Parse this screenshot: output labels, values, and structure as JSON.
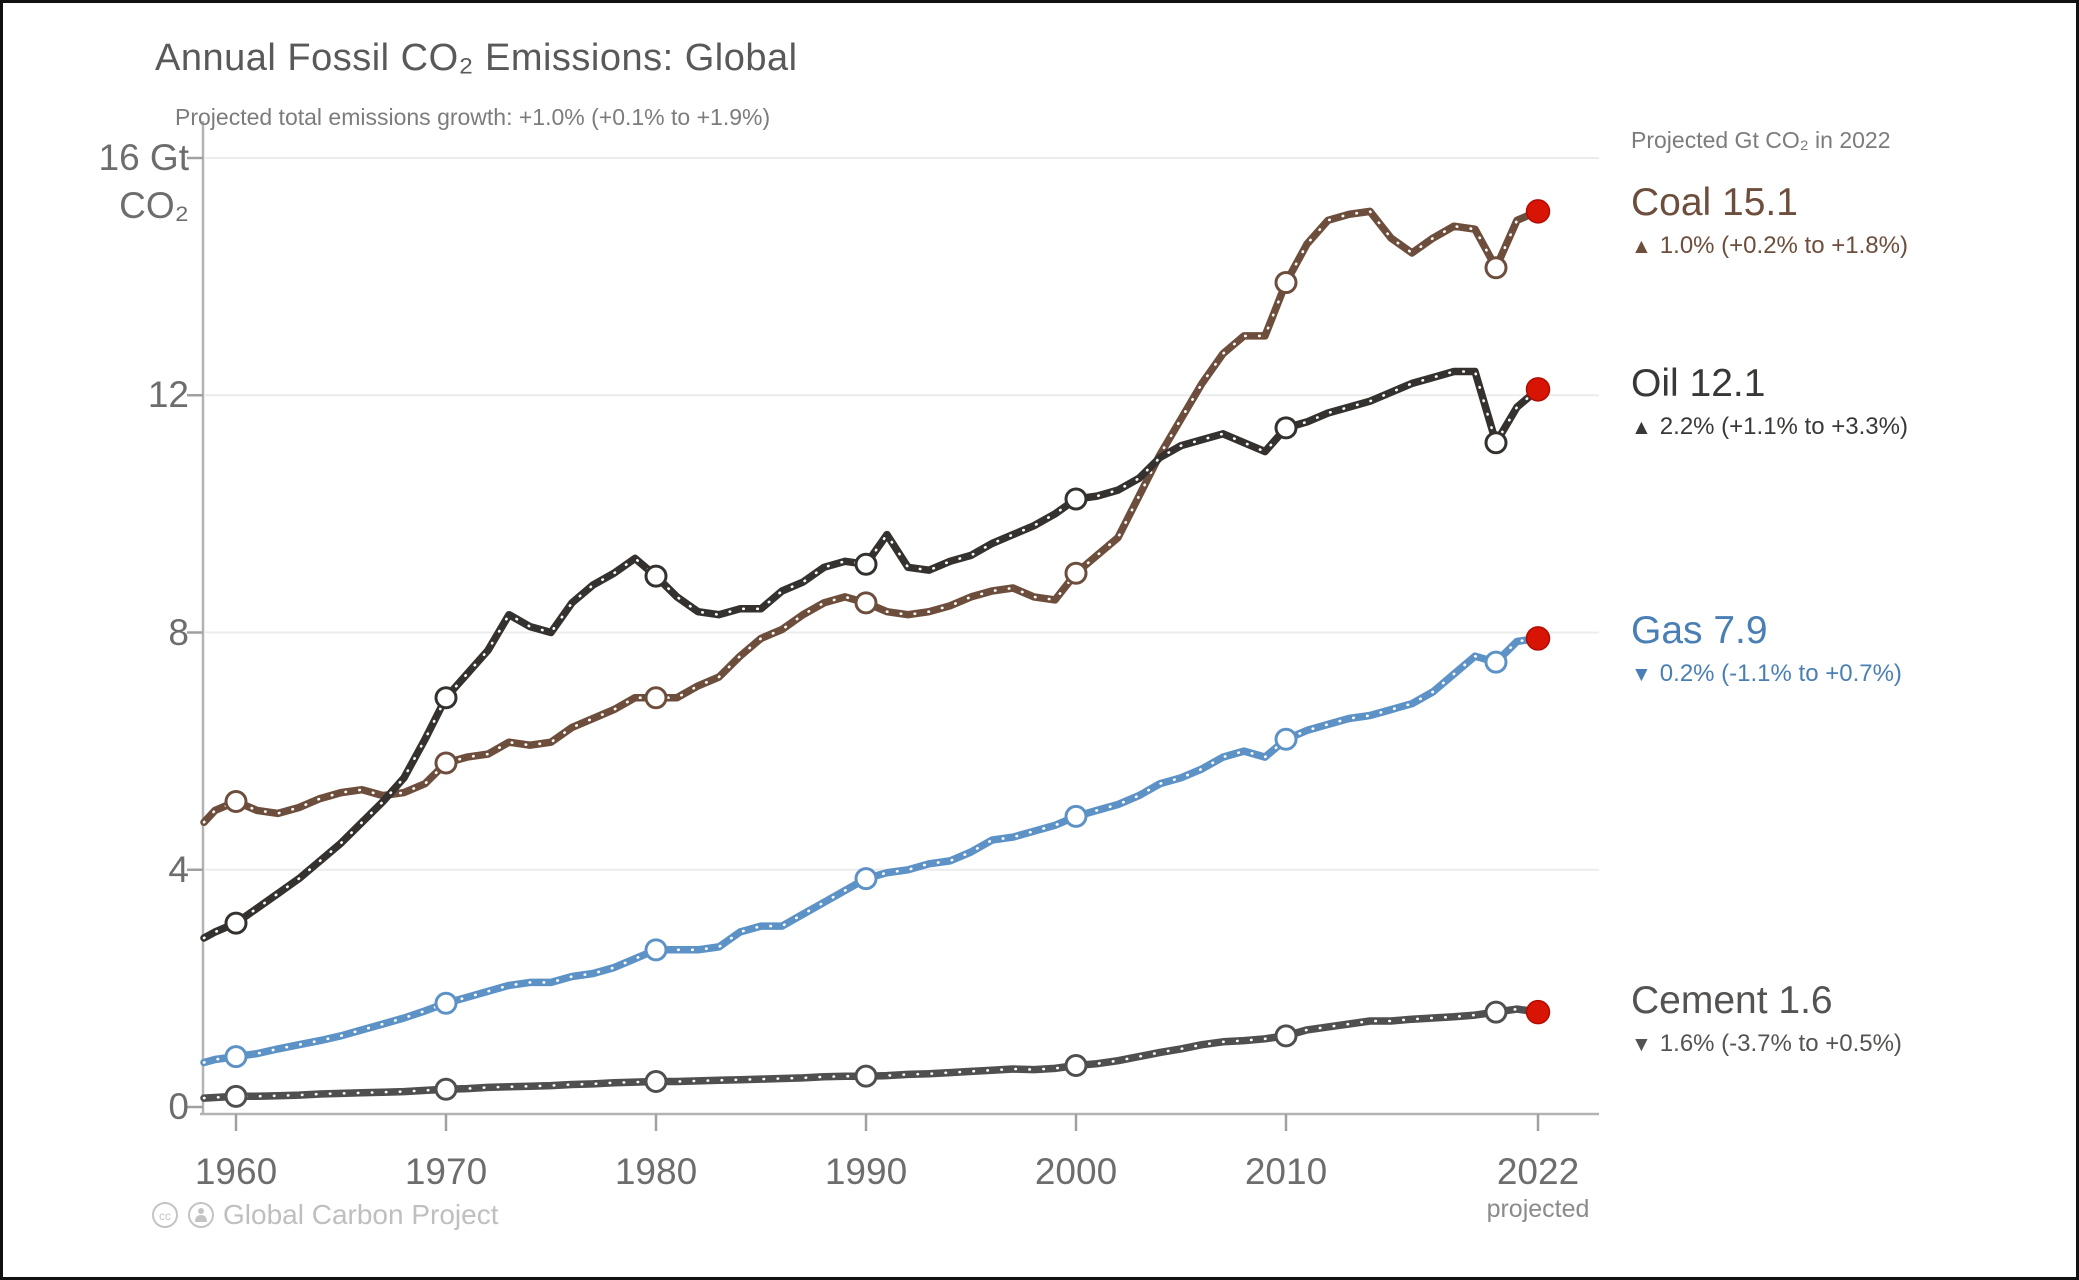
{
  "header": {
    "title": "Annual Fossil CO₂ Emissions: Global",
    "subtitle": "Projected total emissions growth: +1.0% (+0.1% to +1.9%)"
  },
  "y_axis": {
    "top_label_line1": "16 Gt",
    "top_label_line2": "CO₂",
    "ticks": [
      "12",
      "8",
      "4",
      "0"
    ]
  },
  "x_axis": {
    "ticks": [
      "1960",
      "1970",
      "1980",
      "1990",
      "2000",
      "2010",
      "2022"
    ],
    "annotation": "projected"
  },
  "legend": {
    "header": "Projected Gt CO₂ in 2022",
    "entries": [
      {
        "label": "Coal 15.1",
        "arrow": "▲",
        "growth": "1.0% (+0.2% to +1.8%)",
        "color": "#6d4e3c"
      },
      {
        "label": "Oil 12.1",
        "arrow": "▲",
        "growth": "2.2% (+1.1% to +3.3%)",
        "color": "#3a3836"
      },
      {
        "label": "Gas 7.9",
        "arrow": "▼",
        "growth": "0.2% (-1.1% to +0.7%)",
        "color": "#4a7fb5"
      },
      {
        "label": "Cement 1.6",
        "arrow": "▼",
        "growth": "1.6% (-3.7% to +0.5%)",
        "color": "#555351"
      }
    ]
  },
  "footer": {
    "credit": "Global Carbon Project"
  },
  "chart_data": {
    "type": "line",
    "title": "Annual Fossil CO₂ Emissions: Global",
    "subtitle": "Projected total emissions growth: +1.0% (+0.1% to +1.9%)",
    "ylabel": "Gt CO₂",
    "ylim": [
      0,
      16
    ],
    "yticks": [
      0,
      4,
      8,
      12,
      16
    ],
    "xticks": [
      1960,
      1970,
      1980,
      1990,
      2000,
      2010,
      2022
    ],
    "grid": "horizontal light gray at 4/8/12/16",
    "legend_position": "right of plot at line ends",
    "marker_years": [
      1960,
      1970,
      1980,
      1990,
      2000,
      2010,
      2020
    ],
    "projected_year": 2022,
    "projected_color": "#d81405",
    "years": [
      1958,
      1959,
      1960,
      1961,
      1962,
      1963,
      1964,
      1965,
      1966,
      1967,
      1968,
      1969,
      1970,
      1971,
      1972,
      1973,
      1974,
      1975,
      1976,
      1977,
      1978,
      1979,
      1980,
      1981,
      1982,
      1983,
      1984,
      1985,
      1986,
      1987,
      1988,
      1989,
      1990,
      1991,
      1992,
      1993,
      1994,
      1995,
      1996,
      1997,
      1998,
      1999,
      2000,
      2001,
      2002,
      2003,
      2004,
      2005,
      2006,
      2007,
      2008,
      2009,
      2010,
      2011,
      2012,
      2013,
      2014,
      2015,
      2016,
      2017,
      2018,
      2019,
      2020,
      2021,
      2022
    ],
    "series": [
      {
        "name": "Cement",
        "color": "#4f4f4f",
        "end_value": 1.6,
        "values": [
          0.15,
          0.16,
          0.18,
          0.18,
          0.19,
          0.2,
          0.22,
          0.23,
          0.24,
          0.25,
          0.26,
          0.28,
          0.3,
          0.31,
          0.33,
          0.34,
          0.35,
          0.36,
          0.38,
          0.39,
          0.41,
          0.42,
          0.43,
          0.43,
          0.44,
          0.45,
          0.46,
          0.47,
          0.48,
          0.49,
          0.51,
          0.52,
          0.52,
          0.53,
          0.55,
          0.56,
          0.58,
          0.6,
          0.62,
          0.64,
          0.63,
          0.65,
          0.7,
          0.73,
          0.78,
          0.85,
          0.92,
          0.98,
          1.05,
          1.1,
          1.12,
          1.15,
          1.2,
          1.3,
          1.35,
          1.4,
          1.45,
          1.45,
          1.48,
          1.5,
          1.52,
          1.55,
          1.6,
          1.65,
          1.6
        ]
      },
      {
        "name": "Gas",
        "color": "#5d92c6",
        "end_value": 7.9,
        "values": [
          0.75,
          0.8,
          0.85,
          0.9,
          0.98,
          1.05,
          1.12,
          1.2,
          1.3,
          1.4,
          1.5,
          1.62,
          1.75,
          1.85,
          1.95,
          2.05,
          2.1,
          2.1,
          2.2,
          2.25,
          2.35,
          2.5,
          2.65,
          2.65,
          2.65,
          2.7,
          2.95,
          3.05,
          3.05,
          3.25,
          3.45,
          3.65,
          3.85,
          3.95,
          4.0,
          4.1,
          4.15,
          4.3,
          4.5,
          4.55,
          4.65,
          4.75,
          4.9,
          5.0,
          5.1,
          5.25,
          5.45,
          5.55,
          5.7,
          5.9,
          6.0,
          5.9,
          6.2,
          6.35,
          6.45,
          6.55,
          6.6,
          6.7,
          6.8,
          7.0,
          7.3,
          7.6,
          7.5,
          7.85,
          7.9
        ]
      },
      {
        "name": "Coal",
        "color": "#6d4e3c",
        "end_value": 15.1,
        "values": [
          4.8,
          5.0,
          5.15,
          5.0,
          4.95,
          5.05,
          5.2,
          5.3,
          5.35,
          5.25,
          5.3,
          5.45,
          5.8,
          5.9,
          5.95,
          6.15,
          6.1,
          6.15,
          6.4,
          6.55,
          6.7,
          6.9,
          6.9,
          6.9,
          7.1,
          7.25,
          7.6,
          7.9,
          8.05,
          8.3,
          8.5,
          8.6,
          8.5,
          8.35,
          8.3,
          8.35,
          8.45,
          8.6,
          8.7,
          8.75,
          8.6,
          8.55,
          9.0,
          9.3,
          9.6,
          10.3,
          11.0,
          11.6,
          12.2,
          12.7,
          13.0,
          13.0,
          13.9,
          14.55,
          14.95,
          15.05,
          15.1,
          14.65,
          14.4,
          14.65,
          14.85,
          14.8,
          14.15,
          14.95,
          15.1
        ]
      },
      {
        "name": "Oil",
        "color": "#34312e",
        "end_value": 12.1,
        "values": [
          2.85,
          2.95,
          3.1,
          3.35,
          3.6,
          3.85,
          4.15,
          4.45,
          4.8,
          5.15,
          5.55,
          6.2,
          6.9,
          7.3,
          7.7,
          8.3,
          8.1,
          8.0,
          8.5,
          8.8,
          9.0,
          9.25,
          8.95,
          8.6,
          8.35,
          8.3,
          8.4,
          8.4,
          8.7,
          8.85,
          9.1,
          9.2,
          9.15,
          9.65,
          9.1,
          9.05,
          9.2,
          9.3,
          9.5,
          9.65,
          9.8,
          10.0,
          10.25,
          10.3,
          10.4,
          10.6,
          10.95,
          11.15,
          11.25,
          11.35,
          11.2,
          11.05,
          11.45,
          11.55,
          11.7,
          11.8,
          11.9,
          12.05,
          12.2,
          12.3,
          12.4,
          12.4,
          11.2,
          11.8,
          12.1
        ]
      }
    ]
  }
}
